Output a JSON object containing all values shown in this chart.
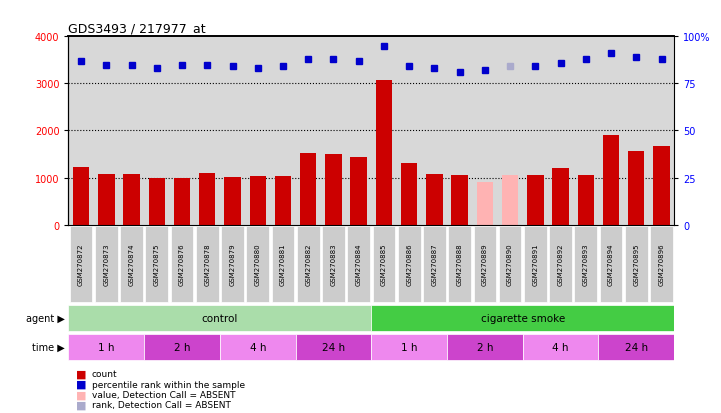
{
  "title": "GDS3493 / 217977_at",
  "samples": [
    "GSM270872",
    "GSM270873",
    "GSM270874",
    "GSM270875",
    "GSM270876",
    "GSM270878",
    "GSM270879",
    "GSM270880",
    "GSM270881",
    "GSM270882",
    "GSM270883",
    "GSM270884",
    "GSM270885",
    "GSM270886",
    "GSM270887",
    "GSM270888",
    "GSM270889",
    "GSM270890",
    "GSM270891",
    "GSM270892",
    "GSM270893",
    "GSM270894",
    "GSM270895",
    "GSM270896"
  ],
  "bar_values": [
    1220,
    1080,
    1070,
    1000,
    980,
    1100,
    1020,
    1040,
    1040,
    1530,
    1490,
    1430,
    3070,
    1300,
    1080,
    1050,
    900,
    1060,
    1050,
    1210,
    1050,
    1900,
    1560,
    1660
  ],
  "bar_absent": [
    false,
    false,
    false,
    false,
    false,
    false,
    false,
    false,
    false,
    false,
    false,
    false,
    false,
    false,
    false,
    false,
    true,
    true,
    false,
    false,
    false,
    false,
    false,
    false
  ],
  "percentile_values": [
    87,
    85,
    85,
    83,
    85,
    85,
    84,
    83,
    84,
    88,
    88,
    87,
    95,
    84,
    83,
    81,
    82,
    84,
    84,
    86,
    88,
    91,
    89,
    88
  ],
  "percentile_absent": [
    false,
    false,
    false,
    false,
    false,
    false,
    false,
    false,
    false,
    false,
    false,
    false,
    false,
    false,
    false,
    false,
    false,
    true,
    false,
    false,
    false,
    false,
    false,
    false
  ],
  "bar_color_normal": "#cc0000",
  "bar_color_absent": "#ffb3b3",
  "dot_color_normal": "#0000cc",
  "dot_color_absent": "#aaaacc",
  "ylim_left": [
    0,
    4000
  ],
  "ylim_right": [
    0,
    100
  ],
  "yticks_left": [
    0,
    1000,
    2000,
    3000,
    4000
  ],
  "yticks_right": [
    0,
    25,
    50,
    75,
    100
  ],
  "agent_groups": [
    {
      "label": "control",
      "start": 0,
      "end": 12,
      "color": "#aaddaa"
    },
    {
      "label": "cigarette smoke",
      "start": 12,
      "end": 24,
      "color": "#44cc44"
    }
  ],
  "time_groups": [
    {
      "label": "1 h",
      "start": 0,
      "end": 3,
      "color": "#ee88ee"
    },
    {
      "label": "2 h",
      "start": 3,
      "end": 6,
      "color": "#cc44cc"
    },
    {
      "label": "4 h",
      "start": 6,
      "end": 9,
      "color": "#ee88ee"
    },
    {
      "label": "24 h",
      "start": 9,
      "end": 12,
      "color": "#cc44cc"
    },
    {
      "label": "1 h",
      "start": 12,
      "end": 15,
      "color": "#ee88ee"
    },
    {
      "label": "2 h",
      "start": 15,
      "end": 18,
      "color": "#cc44cc"
    },
    {
      "label": "4 h",
      "start": 18,
      "end": 21,
      "color": "#ee88ee"
    },
    {
      "label": "24 h",
      "start": 21,
      "end": 24,
      "color": "#cc44cc"
    }
  ],
  "legend_items": [
    {
      "label": "count",
      "color": "#cc0000"
    },
    {
      "label": "percentile rank within the sample",
      "color": "#0000cc"
    },
    {
      "label": "value, Detection Call = ABSENT",
      "color": "#ffb3b3"
    },
    {
      "label": "rank, Detection Call = ABSENT",
      "color": "#aaaacc"
    }
  ],
  "background_color": "#ffffff",
  "plot_bg_color": "#d8d8d8"
}
